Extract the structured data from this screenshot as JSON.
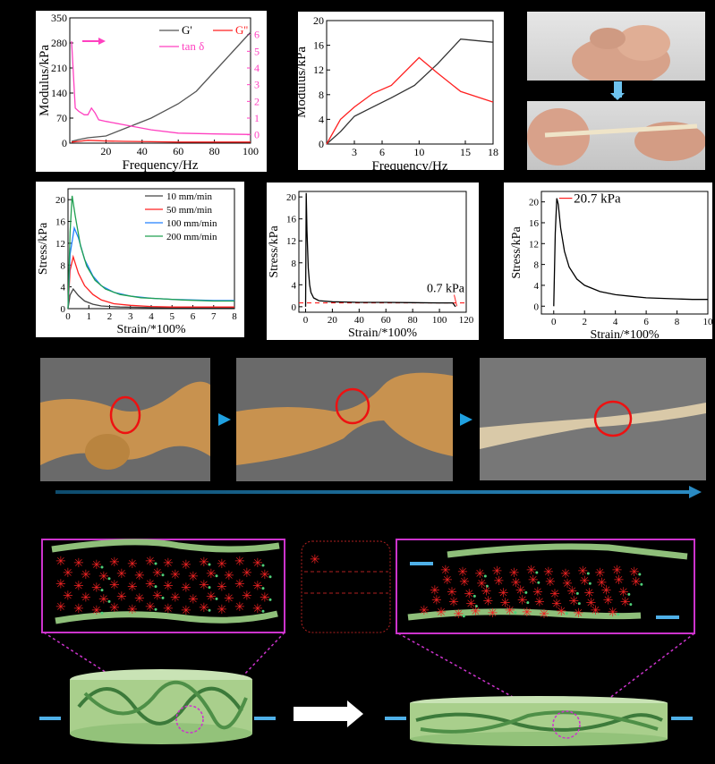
{
  "chart_data": [
    {
      "id": "a",
      "type": "line",
      "xlabel": "Frequency/Hz",
      "ylabel": "Modulus/kPa",
      "y2label": "tan δ",
      "xlim": [
        0,
        100
      ],
      "ylim": [
        0,
        350
      ],
      "y2lim": [
        -0.5,
        7
      ],
      "xticks": [
        20,
        40,
        60,
        80,
        100
      ],
      "yticks": [
        0,
        70,
        140,
        210,
        280,
        350
      ],
      "y2ticks": [
        0,
        1,
        2,
        3,
        4,
        5,
        6
      ],
      "legend_position": "top-right",
      "series": [
        {
          "name": "G'",
          "color": "#555555",
          "axis": "left",
          "x": [
            1,
            5,
            10,
            20,
            30,
            45,
            60,
            70,
            80,
            90,
            100
          ],
          "y": [
            5,
            10,
            15,
            20,
            40,
            70,
            110,
            145,
            200,
            255,
            310
          ]
        },
        {
          "name": "G''",
          "color": "#ff2020",
          "axis": "left",
          "x": [
            1,
            5,
            10,
            20,
            30,
            45,
            60,
            80,
            100
          ],
          "y": [
            3,
            5,
            8,
            6,
            5,
            4,
            3,
            3,
            3
          ]
        },
        {
          "name": "tan δ",
          "color": "#ff40c0",
          "axis": "right",
          "x": [
            1,
            3,
            5,
            8,
            10,
            12,
            14,
            16,
            20,
            30,
            45,
            60,
            80,
            100
          ],
          "y": [
            5.6,
            1.6,
            1.4,
            1.2,
            1.2,
            1.6,
            1.3,
            0.9,
            0.8,
            0.6,
            0.3,
            0.1,
            0.05,
            0.02
          ]
        }
      ]
    },
    {
      "id": "b",
      "type": "line",
      "xlabel": "Frequency/Hz",
      "ylabel": "Modulus/kPa",
      "xlim": [
        0,
        18
      ],
      "ylim": [
        0,
        20
      ],
      "xticks": [
        3,
        6,
        10,
        15,
        18
      ],
      "yticks": [
        0,
        4,
        8,
        12,
        16,
        20
      ],
      "series": [
        {
          "color": "#333333",
          "x": [
            0,
            1.5,
            3,
            5,
            7,
            9.5,
            12,
            14.5,
            18
          ],
          "y": [
            0,
            2,
            4.5,
            6,
            7.5,
            9.5,
            13,
            17,
            16.5
          ]
        },
        {
          "color": "#ff2020",
          "x": [
            0,
            1.5,
            3,
            5,
            7,
            10,
            12,
            14.5,
            18
          ],
          "y": [
            0,
            4,
            6,
            8.2,
            9.5,
            14,
            11.5,
            8.5,
            6.8
          ]
        }
      ]
    },
    {
      "id": "d",
      "type": "line",
      "xlabel": "Strain/*100%",
      "ylabel": "Stress/kPa",
      "xlim": [
        0,
        8
      ],
      "ylim": [
        0,
        22
      ],
      "xticks": [
        0,
        1,
        2,
        3,
        4,
        5,
        6,
        7,
        8
      ],
      "yticks": [
        0,
        4,
        8,
        12,
        16,
        20
      ],
      "legend_position": "top-right",
      "series": [
        {
          "name": "10 mm/min",
          "color": "#444444",
          "x": [
            0,
            0.1,
            0.25,
            0.5,
            0.8,
            1.2,
            1.6,
            2.5,
            4,
            6,
            8
          ],
          "y": [
            0,
            2.5,
            3.6,
            2.4,
            1.4,
            0.8,
            0.5,
            0.3,
            0.2,
            0.2,
            0.2
          ]
        },
        {
          "name": "50 mm/min",
          "color": "#ff2020",
          "x": [
            0,
            0.1,
            0.25,
            0.5,
            0.8,
            1.2,
            1.6,
            2.2,
            3,
            4,
            5,
            6,
            8
          ],
          "y": [
            0,
            7,
            9.5,
            6.5,
            4.2,
            2.6,
            1.6,
            0.9,
            0.6,
            0.4,
            0.3,
            0.3,
            0.3
          ]
        },
        {
          "name": "100 mm/min",
          "color": "#2080ff",
          "x": [
            0,
            0.1,
            0.3,
            0.5,
            0.8,
            1.2,
            1.6,
            2.2,
            3,
            4,
            5,
            6,
            7,
            8
          ],
          "y": [
            0,
            10,
            14.8,
            13,
            9,
            6,
            4.2,
            3,
            2.3,
            1.9,
            1.7,
            1.6,
            1.5,
            1.5
          ]
        },
        {
          "name": "200 mm/min",
          "color": "#20a050",
          "x": [
            0,
            0.1,
            0.2,
            0.35,
            0.6,
            0.9,
            1.3,
            1.8,
            2.5,
            3.5,
            4.5,
            5.5,
            7,
            8
          ],
          "y": [
            0,
            14,
            20.7,
            17,
            11.5,
            7.8,
            5.2,
            3.6,
            2.6,
            2.0,
            1.8,
            1.6,
            1.4,
            1.4
          ]
        }
      ]
    },
    {
      "id": "e",
      "type": "line",
      "xlabel": "Strain/*100%",
      "ylabel": "Stress/kPa",
      "xlim": [
        -5,
        120
      ],
      "ylim": [
        -1,
        21
      ],
      "xticks": [
        0,
        20,
        40,
        60,
        80,
        100,
        120
      ],
      "yticks": [
        0,
        4,
        8,
        12,
        16,
        20
      ],
      "annotation": "0.7 kPa",
      "reference_line": 0.7,
      "series": [
        {
          "color": "#000000",
          "x": [
            0,
            0.5,
            1,
            2,
            3,
            4,
            6,
            10,
            20,
            40,
            60,
            80,
            100,
            110,
            112
          ],
          "y": [
            0,
            20.7,
            14,
            7,
            4,
            2.6,
            1.6,
            1.1,
            0.9,
            0.8,
            0.8,
            0.75,
            0.7,
            0.7,
            0
          ]
        }
      ]
    },
    {
      "id": "f",
      "type": "line",
      "xlabel": "Strain/*100%",
      "ylabel": "Stress/kPa",
      "xlim": [
        -0.8,
        10
      ],
      "ylim": [
        -1.5,
        22
      ],
      "xticks": [
        0,
        2,
        4,
        6,
        8,
        10
      ],
      "yticks": [
        0,
        4,
        8,
        12,
        16,
        20
      ],
      "annotation": "20.7 kPa",
      "series": [
        {
          "color": "#000000",
          "x": [
            0,
            0.1,
            0.2,
            0.3,
            0.45,
            0.7,
            1,
            1.5,
            2,
            3,
            4,
            5,
            6,
            7,
            8,
            9,
            10
          ],
          "y": [
            0,
            14,
            20.7,
            19.5,
            15,
            10.5,
            7.5,
            5.2,
            4,
            2.8,
            2.2,
            1.9,
            1.6,
            1.5,
            1.4,
            1.3,
            1.3
          ]
        }
      ]
    }
  ],
  "colors": {
    "background": "#000000",
    "arrow_blue": "#1fa0e0",
    "circle_red": "#ee1111",
    "frame_magenta": "#cc33cc",
    "fiber_green": "#8fbf7a"
  }
}
